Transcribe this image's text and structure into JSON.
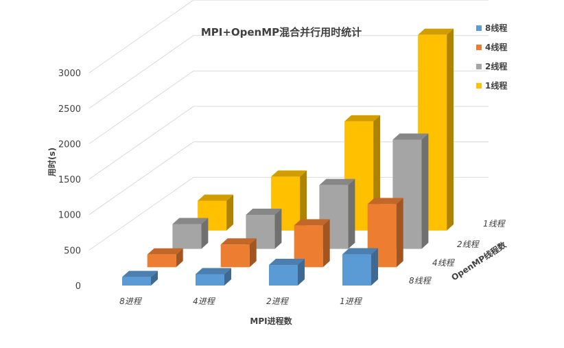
{
  "chart_data": {
    "type": "bar",
    "subtype": "3d-column",
    "title": "MPI+OpenMP混合并行用时统计",
    "xlabel": "MPI进程数",
    "ylabel": "用时(s)",
    "zlabel": "OpenMP线程数",
    "categories": [
      "8进程",
      "4进程",
      "2进程",
      "1进程"
    ],
    "yticks": [
      0,
      500,
      1000,
      1500,
      2000,
      2500,
      3000
    ],
    "ylim": [
      0,
      3000
    ],
    "grid": true,
    "legend_position": "right",
    "series": [
      {
        "name": "8线程",
        "color": "#5b9bd5",
        "values": [
          120,
          160,
          290,
          440
        ]
      },
      {
        "name": "4线程",
        "color": "#ed7d31",
        "values": [
          180,
          320,
          590,
          890
        ]
      },
      {
        "name": "2线程",
        "color": "#a5a5a5",
        "values": [
          350,
          480,
          900,
          1540
        ]
      },
      {
        "name": "1线程",
        "color": "#ffc000",
        "values": [
          420,
          760,
          1540,
          2760
        ]
      }
    ]
  }
}
